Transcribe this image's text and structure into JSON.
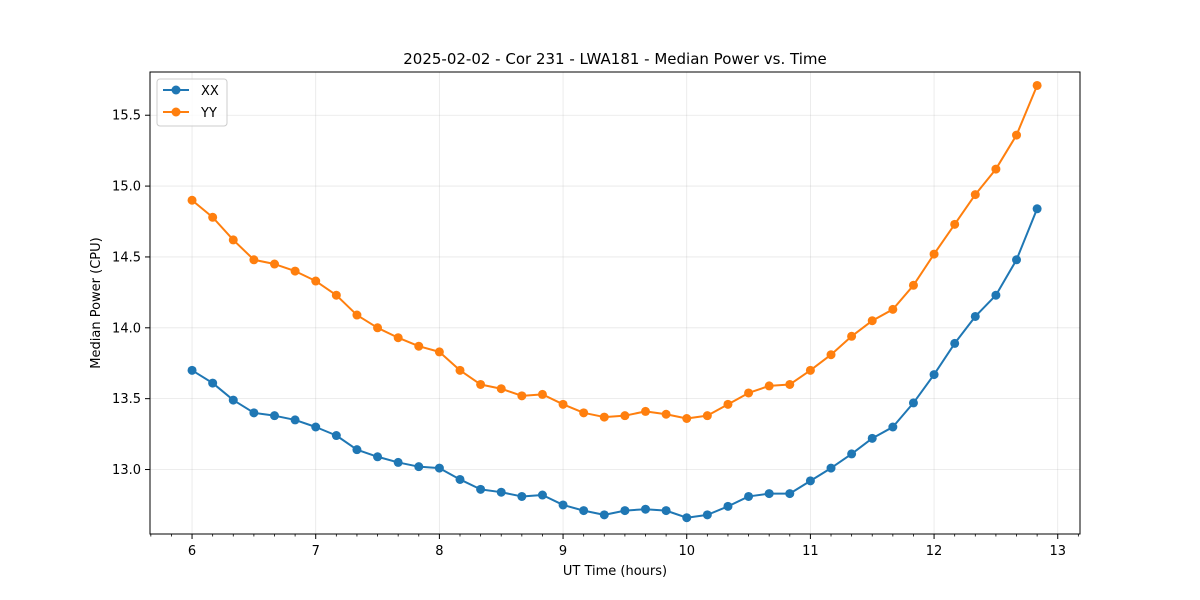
{
  "chart_data": {
    "type": "line",
    "title": "2025-02-02 - Cor 231 - LWA181 - Median Power vs. Time",
    "xlabel": "UT Time (hours)",
    "ylabel": "Median Power (CPU)",
    "xlim": [
      5.66,
      13.18
    ],
    "ylim": [
      12.545,
      15.805
    ],
    "xticks": [
      6,
      7,
      8,
      9,
      10,
      11,
      12,
      13
    ],
    "yticks": [
      13.0,
      13.5,
      14.0,
      14.5,
      15.0,
      15.5
    ],
    "ytick_labels": [
      "13.0",
      "13.5",
      "14.0",
      "14.5",
      "15.0",
      "15.5"
    ],
    "grid": true,
    "legend": "top-left",
    "x": [
      6.0,
      6.1667,
      6.3333,
      6.5,
      6.6667,
      6.8333,
      7.0,
      7.1667,
      7.3333,
      7.5,
      7.6667,
      7.8333,
      8.0,
      8.1667,
      8.3333,
      8.5,
      8.6667,
      8.8333,
      9.0,
      9.1667,
      9.3333,
      9.5,
      9.6667,
      9.8333,
      10.0,
      10.1667,
      10.3333,
      10.5,
      10.6667,
      10.8333,
      11.0,
      11.1667,
      11.3333,
      11.5,
      11.6667,
      11.8333,
      12.0,
      12.1667,
      12.3333,
      12.5,
      12.6667,
      12.8333
    ],
    "series": [
      {
        "name": "XX",
        "color": "#1f77b4",
        "values": [
          13.7,
          13.61,
          13.49,
          13.4,
          13.38,
          13.35,
          13.3,
          13.24,
          13.14,
          13.09,
          13.05,
          13.02,
          13.01,
          12.93,
          12.86,
          12.84,
          12.81,
          12.82,
          12.75,
          12.71,
          12.68,
          12.71,
          12.72,
          12.71,
          12.66,
          12.68,
          12.74,
          12.81,
          12.83,
          12.83,
          12.92,
          13.01,
          13.11,
          13.22,
          13.3,
          13.47,
          13.67,
          13.89,
          14.08,
          14.23,
          14.48,
          14.84
        ]
      },
      {
        "name": "YY",
        "color": "#ff7f0e",
        "values": [
          14.9,
          14.78,
          14.62,
          14.48,
          14.45,
          14.4,
          14.33,
          14.23,
          14.09,
          14.0,
          13.93,
          13.87,
          13.83,
          13.7,
          13.6,
          13.57,
          13.52,
          13.53,
          13.46,
          13.4,
          13.37,
          13.38,
          13.41,
          13.39,
          13.36,
          13.38,
          13.46,
          13.54,
          13.59,
          13.6,
          13.7,
          13.81,
          13.94,
          14.05,
          14.13,
          14.3,
          14.52,
          14.73,
          14.94,
          15.12,
          15.36,
          15.71
        ]
      }
    ]
  }
}
